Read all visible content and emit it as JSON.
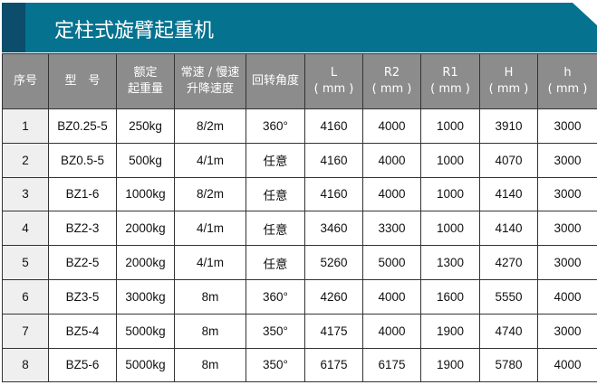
{
  "title": "定柱式旋臂起重机",
  "headers": [
    [
      "序号",
      ""
    ],
    [
      "型　号",
      ""
    ],
    [
      "额定",
      "起重量"
    ],
    [
      "常速 / 慢速",
      "升降速度"
    ],
    [
      "回转角度",
      ""
    ],
    [
      "L",
      "( mm )"
    ],
    [
      "R2",
      "( mm )"
    ],
    [
      "R1",
      "( mm )"
    ],
    [
      "H",
      "( mm )"
    ],
    [
      "h",
      "( mm )"
    ]
  ],
  "rows": [
    [
      "1",
      "BZ0.25-5",
      "250kg",
      "8/2m",
      "360°",
      "4160",
      "4000",
      "1000",
      "3910",
      "3000"
    ],
    [
      "2",
      "BZ0.5-5",
      "500kg",
      "4/1m",
      "任意",
      "4160",
      "4000",
      "1000",
      "4070",
      "3000"
    ],
    [
      "3",
      "BZ1-6",
      "1000kg",
      "8/2m",
      "任意",
      "4160",
      "4000",
      "1000",
      "4140",
      "3000"
    ],
    [
      "4",
      "BZ2-3",
      "2000kg",
      "4/1m",
      "任意",
      "3460",
      "3300",
      "1000",
      "4140",
      "3000"
    ],
    [
      "5",
      "BZ2-5",
      "2000kg",
      "4/1m",
      "任意",
      "5260",
      "5000",
      "1300",
      "4270",
      "3000"
    ],
    [
      "6",
      "BZ3-5",
      "3000kg",
      "8m",
      "360°",
      "4260",
      "4000",
      "1600",
      "5550",
      "4000"
    ],
    [
      "7",
      "BZ5-4",
      "5000kg",
      "8m",
      "350°",
      "4175",
      "4000",
      "1900",
      "4740",
      "3000"
    ],
    [
      "8",
      "BZ5-6",
      "5000kg",
      "8m",
      "350°",
      "6175",
      "6175",
      "1900",
      "5780",
      "4000"
    ]
  ],
  "colors": {
    "banner": "#05728f",
    "banner_strip": "#0b4d6b",
    "header": "#8c8c8c"
  }
}
